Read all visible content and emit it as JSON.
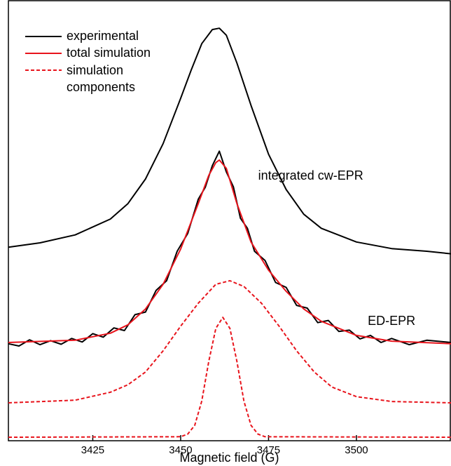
{
  "chart_data": {
    "type": "line",
    "x_label": "Magnetic field (G)",
    "xlim": [
      3401,
      3527
    ],
    "ylim": [
      0,
      100
    ],
    "xticks": [
      3425,
      3450,
      3475,
      3500
    ],
    "annotations": [
      {
        "text": "integrated cw-EPR",
        "x": 3487,
        "y": 60
      },
      {
        "text": "ED-EPR",
        "x": 3510,
        "y": 27
      }
    ],
    "series": [
      {
        "name": "experimental",
        "color": "#000000",
        "dashed": false,
        "x": [
          3401,
          3410,
          3420,
          3430,
          3435,
          3440,
          3445,
          3450,
          3453,
          3456,
          3459,
          3461,
          3463,
          3466,
          3470,
          3475,
          3480,
          3485,
          3490,
          3500,
          3510,
          3520,
          3527
        ],
        "values": [
          43.9,
          44.9,
          46.7,
          50.3,
          53.8,
          59.4,
          67.4,
          77.7,
          84.1,
          90.1,
          93.3,
          93.6,
          92.0,
          85.7,
          76.1,
          65.0,
          57.0,
          51.4,
          48.2,
          45.1,
          43.6,
          43.0,
          42.4
        ]
      },
      {
        "color": "#000000",
        "dashed": false,
        "x": [
          3401,
          3404,
          3407,
          3410,
          3413,
          3416,
          3419,
          3422,
          3425,
          3428,
          3431,
          3434,
          3437,
          3440,
          3443,
          3446,
          3449,
          3452,
          3455,
          3457,
          3459,
          3461,
          3463,
          3465,
          3467,
          3469,
          3471,
          3474,
          3477,
          3480,
          3483,
          3486,
          3489,
          3492,
          3495,
          3498,
          3501,
          3504,
          3507,
          3510,
          3515,
          3520,
          3527
        ],
        "values": [
          22.0,
          21.5,
          22.9,
          21.8,
          22.7,
          21.9,
          23.2,
          22.4,
          24.3,
          23.5,
          25.6,
          25.0,
          28.6,
          29.2,
          34.1,
          36.3,
          43.0,
          47.0,
          54.8,
          57.5,
          62.4,
          65.7,
          61.0,
          57.6,
          50.5,
          48.2,
          43.0,
          40.9,
          35.9,
          34.8,
          30.7,
          30.1,
          26.8,
          27.3,
          24.8,
          25.1,
          23.1,
          23.9,
          22.3,
          23.2,
          21.8,
          22.8,
          22.3
        ]
      },
      {
        "name": "total simulation",
        "color": "#e8141c",
        "dashed": false,
        "x": [
          3401,
          3420,
          3430,
          3435,
          3440,
          3445,
          3450,
          3455,
          3458,
          3460,
          3461,
          3463,
          3466,
          3470,
          3475,
          3480,
          3485,
          3490,
          3500,
          3510,
          3527
        ],
        "values": [
          22.3,
          22.8,
          24.4,
          26.3,
          29.9,
          35.5,
          43.5,
          53.8,
          60.2,
          63.1,
          63.7,
          61.8,
          53.8,
          45.1,
          38.7,
          33.9,
          29.9,
          27.1,
          23.9,
          22.6,
          22.0
        ]
      },
      {
        "name": "simulation components",
        "color": "#e8141c",
        "dashed": true,
        "x": [
          3401,
          3420,
          3430,
          3435,
          3440,
          3445,
          3450,
          3455,
          3460,
          3464,
          3468,
          3473,
          3478,
          3483,
          3488,
          3493,
          3500,
          3510,
          3527
        ],
        "values": [
          8.6,
          9.2,
          11.0,
          12.7,
          15.6,
          20.4,
          26.0,
          31.2,
          35.5,
          36.3,
          35.0,
          31.2,
          26.0,
          20.4,
          15.6,
          12.2,
          10.0,
          8.9,
          8.6
        ]
      },
      {
        "color": "#e8141c",
        "dashed": true,
        "x": [
          3401,
          3450,
          3452,
          3454,
          3456,
          3458,
          3460,
          3462,
          3464,
          3466,
          3468,
          3470,
          3472,
          3474,
          3527
        ],
        "values": [
          0.8,
          0.9,
          1.5,
          3.5,
          9,
          18,
          25.5,
          28.0,
          25.5,
          18,
          9,
          3.5,
          1.5,
          0.9,
          0.8
        ]
      }
    ]
  }
}
